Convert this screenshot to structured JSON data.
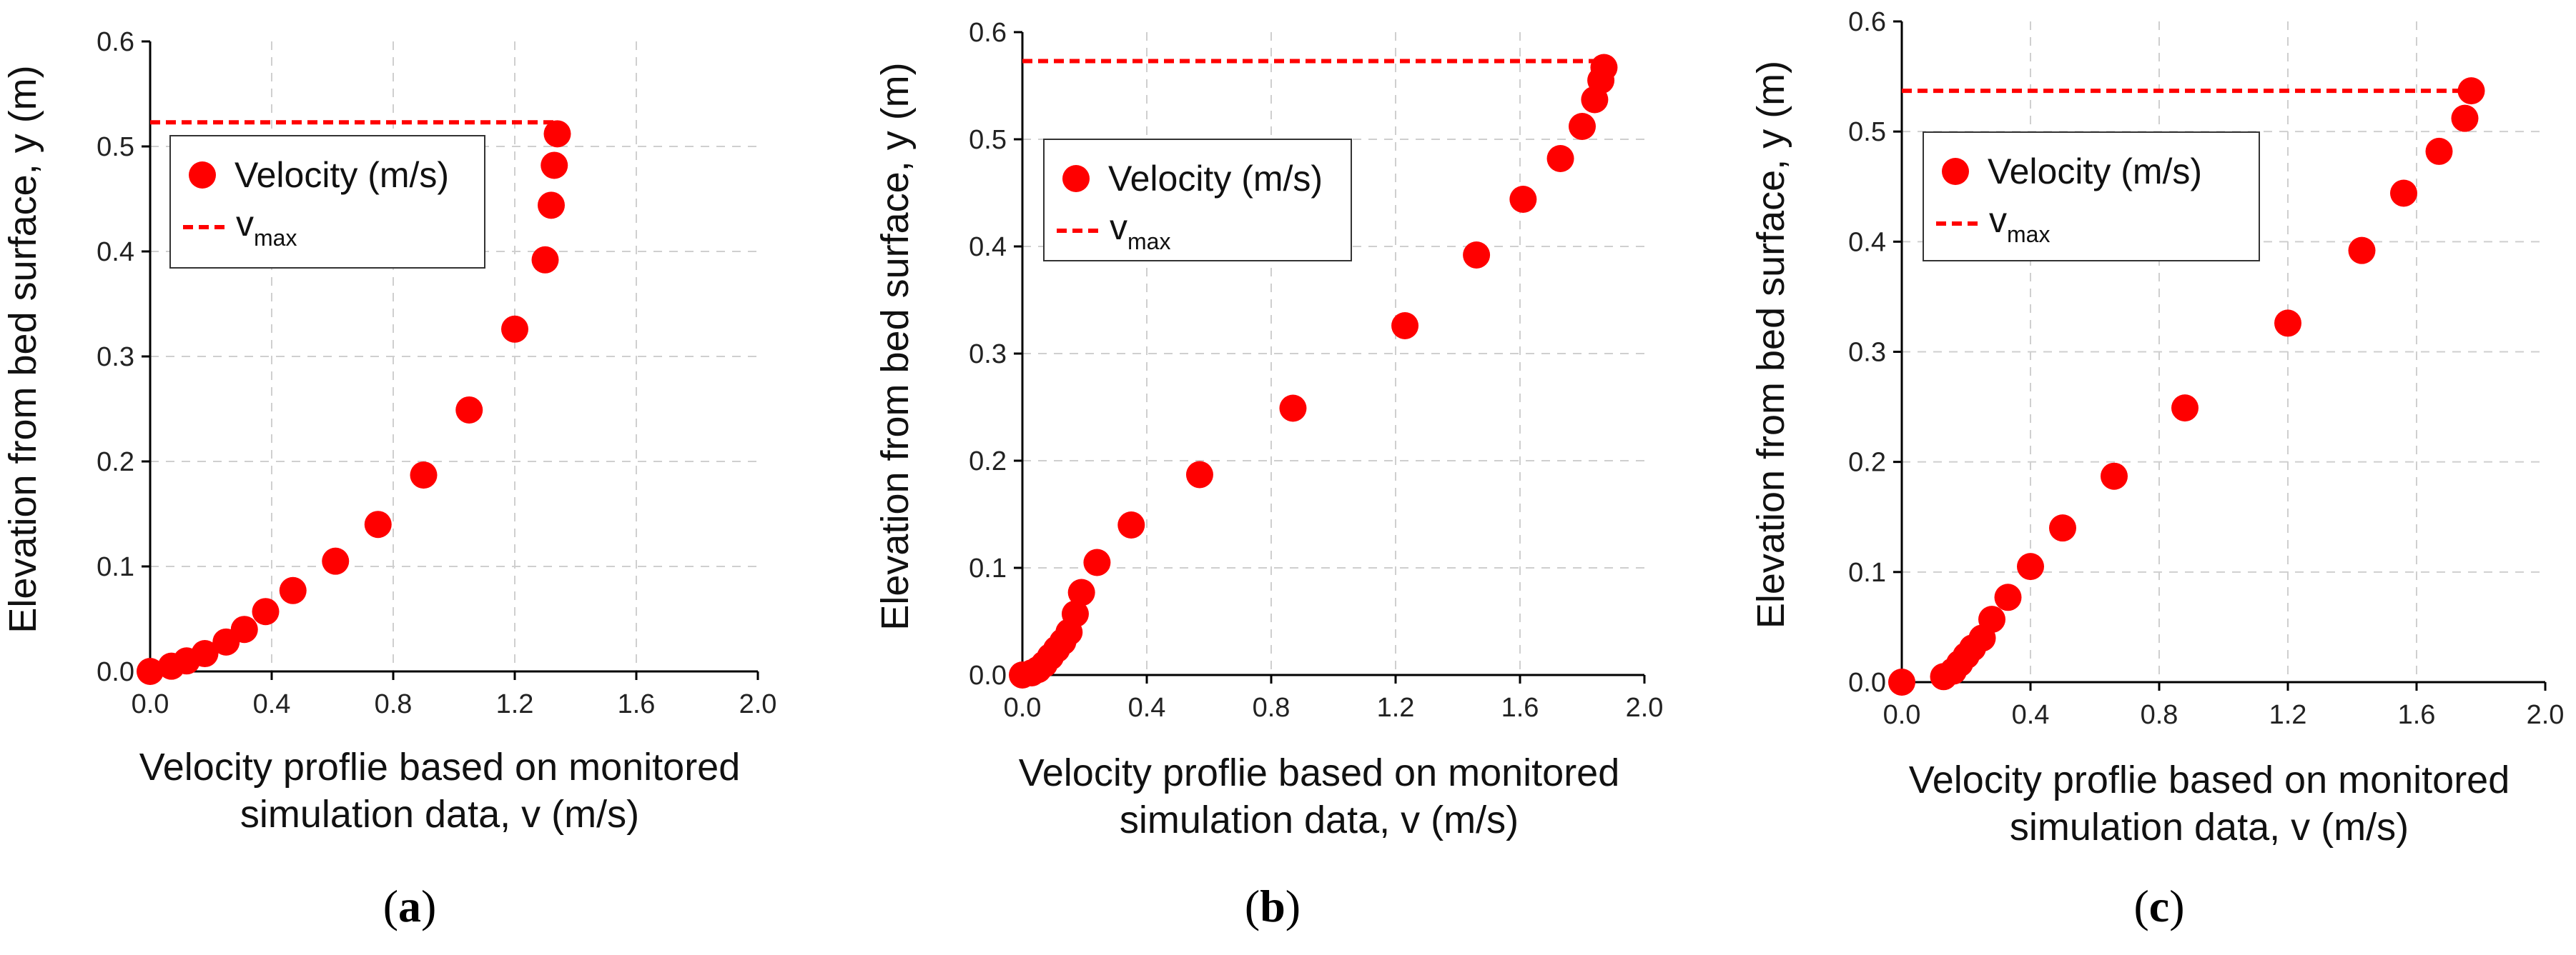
{
  "figure": {
    "colors": {
      "marker": "#ff0000",
      "vmax_line": "#ff0000",
      "grid": "#cfcfcf",
      "axis": "#000000"
    },
    "caption_open": "(",
    "caption_close": ")"
  },
  "chart_data": [
    {
      "type": "scatter",
      "panel_label": "a",
      "xlabel_line1": "Velocity proflie based on monitored",
      "xlabel_line2": "simulation data, v (m/s)",
      "ylabel": "Elevation from bed surface, y (m)",
      "xlim": [
        0,
        2.0
      ],
      "ylim": [
        0,
        0.6
      ],
      "xticks": [
        "0.0",
        "0.4",
        "0.8",
        "1.2",
        "1.6",
        "2.0"
      ],
      "yticks": [
        "0.0",
        "0.1",
        "0.2",
        "0.3",
        "0.4",
        "0.5",
        "0.6"
      ],
      "legend": {
        "series_label": "Velocity (m/s)",
        "line_label": "v",
        "line_label_sub": "max"
      },
      "vmax_line": {
        "y": 0.523,
        "x_end": 1.34
      },
      "series": [
        {
          "name": "Velocity (m/s)",
          "x": [
            0.0,
            0.07,
            0.12,
            0.18,
            0.25,
            0.31,
            0.38,
            0.47,
            0.61,
            0.75,
            0.9,
            1.05,
            1.2,
            1.3,
            1.32,
            1.33,
            1.34
          ],
          "y": [
            0.0,
            0.005,
            0.01,
            0.017,
            0.028,
            0.04,
            0.057,
            0.077,
            0.105,
            0.14,
            0.187,
            0.249,
            0.326,
            0.392,
            0.444,
            0.482,
            0.512
          ]
        }
      ]
    },
    {
      "type": "scatter",
      "panel_label": "b",
      "xlabel_line1": "Velocity proflie based on monitored",
      "xlabel_line2": "simulation data, v (m/s)",
      "ylabel": "Elevation from bed surface, y (m)",
      "xlim": [
        0,
        2.0
      ],
      "ylim": [
        0,
        0.6
      ],
      "xticks": [
        "0.0",
        "0.4",
        "0.8",
        "1.2",
        "1.6",
        "2.0"
      ],
      "yticks": [
        "0.0",
        "0.1",
        "0.2",
        "0.3",
        "0.4",
        "0.5",
        "0.6"
      ],
      "legend": {
        "series_label": "Velocity (m/s)",
        "line_label": "v",
        "line_label_sub": "max"
      },
      "vmax_line": {
        "y": 0.573,
        "x_end": 1.88
      },
      "series": [
        {
          "name": "Velocity (m/s)",
          "x": [
            0.0,
            0.03,
            0.05,
            0.07,
            0.09,
            0.11,
            0.13,
            0.15,
            0.17,
            0.19,
            0.24,
            0.35,
            0.57,
            0.87,
            1.23,
            1.46,
            1.61,
            1.73,
            1.8,
            1.84,
            1.86,
            1.87
          ],
          "y": [
            0.0,
            0.002,
            0.005,
            0.01,
            0.017,
            0.024,
            0.031,
            0.04,
            0.057,
            0.077,
            0.105,
            0.14,
            0.187,
            0.249,
            0.326,
            0.392,
            0.444,
            0.482,
            0.512,
            0.537,
            0.555,
            0.567
          ]
        }
      ]
    },
    {
      "type": "scatter",
      "panel_label": "c",
      "xlabel_line1": "Velocity proflie based on monitored",
      "xlabel_line2": "simulation data, v (m/s)",
      "ylabel": "Elevation from bed surface, y (m)",
      "xlim": [
        0,
        2.0
      ],
      "ylim": [
        0,
        0.6
      ],
      "xticks": [
        "0.0",
        "0.4",
        "0.8",
        "1.2",
        "1.6",
        "2.0"
      ],
      "yticks": [
        "0.0",
        "0.1",
        "0.2",
        "0.3",
        "0.4",
        "0.5",
        "0.6"
      ],
      "legend": {
        "series_label": "Velocity (m/s)",
        "line_label": "v",
        "line_label_sub": "max"
      },
      "vmax_line": {
        "y": 0.537,
        "x_end": 1.77
      },
      "series": [
        {
          "name": "Velocity (m/s)",
          "x": [
            0.0,
            0.13,
            0.16,
            0.18,
            0.2,
            0.22,
            0.25,
            0.28,
            0.33,
            0.4,
            0.5,
            0.66,
            0.88,
            1.2,
            1.43,
            1.56,
            1.67,
            1.75,
            1.77
          ],
          "y": [
            0.0,
            0.005,
            0.01,
            0.017,
            0.024,
            0.031,
            0.04,
            0.057,
            0.077,
            0.105,
            0.14,
            0.187,
            0.249,
            0.326,
            0.392,
            0.444,
            0.482,
            0.512,
            0.537
          ]
        }
      ]
    }
  ]
}
